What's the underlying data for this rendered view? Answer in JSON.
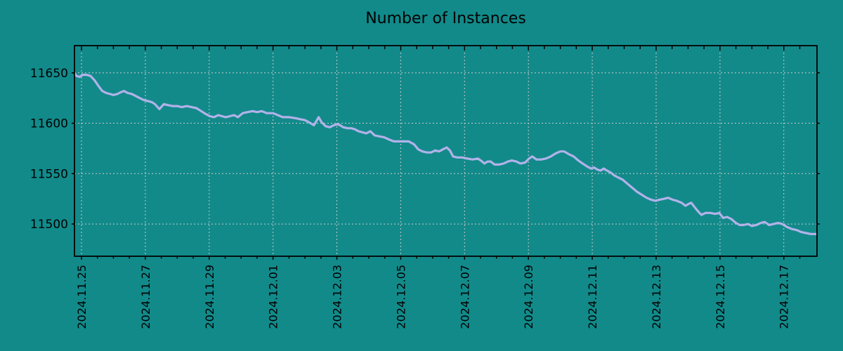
{
  "colors": {
    "background": "#128a8a",
    "line": "#b2b2e9",
    "grid": "#c9c9c9",
    "axis": "#000000",
    "text": "#000000"
  },
  "chart_data": {
    "type": "line",
    "title": "Number of Instances",
    "xlabel": "",
    "ylabel": "",
    "legend": "none",
    "grid": true,
    "x_day0_label": "2024.11.25",
    "xlim_days": [
      -0.22,
      23.04
    ],
    "ylim": [
      11468,
      11677
    ],
    "x_minor_interval_days": 0.5,
    "x_major_ticks": [
      {
        "day": 0,
        "label": "2024.11.25"
      },
      {
        "day": 2,
        "label": "2024.11.27"
      },
      {
        "day": 4,
        "label": "2024.11.29"
      },
      {
        "day": 6,
        "label": "2024.12.01"
      },
      {
        "day": 8,
        "label": "2024.12.03"
      },
      {
        "day": 10,
        "label": "2024.12.05"
      },
      {
        "day": 12,
        "label": "2024.12.07"
      },
      {
        "day": 14,
        "label": "2024.12.09"
      },
      {
        "day": 16,
        "label": "2024.12.11"
      },
      {
        "day": 18,
        "label": "2024.12.13"
      },
      {
        "day": 20,
        "label": "2024.12.15"
      },
      {
        "day": 22,
        "label": "2024.12.17"
      }
    ],
    "y_ticks": [
      {
        "value": 11500,
        "label": "11500"
      },
      {
        "value": 11550,
        "label": "11550"
      },
      {
        "value": 11600,
        "label": "11600"
      },
      {
        "value": 11650,
        "label": "11650"
      }
    ],
    "series": [
      {
        "name": "Number of Instances",
        "points": [
          [
            -0.22,
            11650
          ],
          [
            -0.16,
            11647
          ],
          [
            -0.06,
            11646
          ],
          [
            0.04,
            11648
          ],
          [
            0.16,
            11648
          ],
          [
            0.28,
            11647
          ],
          [
            0.4,
            11643
          ],
          [
            0.53,
            11637
          ],
          [
            0.65,
            11632
          ],
          [
            0.78,
            11630
          ],
          [
            0.9,
            11629
          ],
          [
            1.0,
            11628
          ],
          [
            1.12,
            11629
          ],
          [
            1.25,
            11631
          ],
          [
            1.33,
            11632
          ],
          [
            1.45,
            11630
          ],
          [
            1.58,
            11629
          ],
          [
            1.7,
            11627
          ],
          [
            1.82,
            11625
          ],
          [
            1.95,
            11623
          ],
          [
            2.08,
            11622
          ],
          [
            2.2,
            11621
          ],
          [
            2.3,
            11619
          ],
          [
            2.44,
            11614
          ],
          [
            2.58,
            11619
          ],
          [
            2.7,
            11618
          ],
          [
            2.85,
            11617
          ],
          [
            3.0,
            11617
          ],
          [
            3.15,
            11616
          ],
          [
            3.3,
            11617
          ],
          [
            3.45,
            11616
          ],
          [
            3.6,
            11615
          ],
          [
            3.75,
            11612
          ],
          [
            3.9,
            11609
          ],
          [
            4.02,
            11607
          ],
          [
            4.15,
            11606
          ],
          [
            4.28,
            11608
          ],
          [
            4.4,
            11607
          ],
          [
            4.52,
            11606
          ],
          [
            4.65,
            11607
          ],
          [
            4.78,
            11608
          ],
          [
            4.9,
            11606
          ],
          [
            5.05,
            11610
          ],
          [
            5.2,
            11611
          ],
          [
            5.36,
            11612
          ],
          [
            5.5,
            11611
          ],
          [
            5.65,
            11612
          ],
          [
            5.8,
            11610
          ],
          [
            6.0,
            11610
          ],
          [
            6.15,
            11608
          ],
          [
            6.3,
            11606
          ],
          [
            6.5,
            11606
          ],
          [
            6.7,
            11605
          ],
          [
            6.85,
            11604
          ],
          [
            7.0,
            11603
          ],
          [
            7.12,
            11601
          ],
          [
            7.28,
            11598
          ],
          [
            7.43,
            11606
          ],
          [
            7.52,
            11601
          ],
          [
            7.65,
            11597
          ],
          [
            7.78,
            11596
          ],
          [
            7.9,
            11598
          ],
          [
            8.02,
            11599
          ],
          [
            8.1,
            11598
          ],
          [
            8.2,
            11596
          ],
          [
            8.34,
            11595
          ],
          [
            8.45,
            11595
          ],
          [
            8.56,
            11594
          ],
          [
            8.68,
            11592
          ],
          [
            8.8,
            11591
          ],
          [
            8.92,
            11590
          ],
          [
            9.05,
            11592
          ],
          [
            9.18,
            11588
          ],
          [
            9.32,
            11587
          ],
          [
            9.48,
            11586
          ],
          [
            9.62,
            11584
          ],
          [
            9.78,
            11582
          ],
          [
            9.95,
            11582
          ],
          [
            10.1,
            11582
          ],
          [
            10.25,
            11582
          ],
          [
            10.42,
            11579
          ],
          [
            10.55,
            11574
          ],
          [
            10.68,
            11572
          ],
          [
            10.82,
            11571
          ],
          [
            10.95,
            11571
          ],
          [
            11.08,
            11573
          ],
          [
            11.2,
            11572
          ],
          [
            11.32,
            11574
          ],
          [
            11.44,
            11576
          ],
          [
            11.54,
            11573
          ],
          [
            11.64,
            11567
          ],
          [
            11.78,
            11566
          ],
          [
            11.92,
            11566
          ],
          [
            12.08,
            11565
          ],
          [
            12.25,
            11564
          ],
          [
            12.42,
            11565
          ],
          [
            12.55,
            11562
          ],
          [
            12.62,
            11560
          ],
          [
            12.72,
            11562
          ],
          [
            12.82,
            11562
          ],
          [
            12.94,
            11559
          ],
          [
            13.08,
            11559
          ],
          [
            13.22,
            11560
          ],
          [
            13.36,
            11562
          ],
          [
            13.48,
            11563
          ],
          [
            13.62,
            11562
          ],
          [
            13.75,
            11560
          ],
          [
            13.9,
            11561
          ],
          [
            14.02,
            11565
          ],
          [
            14.12,
            11567
          ],
          [
            14.25,
            11564
          ],
          [
            14.4,
            11564
          ],
          [
            14.55,
            11565
          ],
          [
            14.7,
            11567
          ],
          [
            14.85,
            11570
          ],
          [
            15.0,
            11572
          ],
          [
            15.12,
            11572
          ],
          [
            15.28,
            11569
          ],
          [
            15.42,
            11567
          ],
          [
            15.56,
            11563
          ],
          [
            15.7,
            11560
          ],
          [
            15.84,
            11557
          ],
          [
            15.96,
            11555
          ],
          [
            16.06,
            11556
          ],
          [
            16.16,
            11554
          ],
          [
            16.26,
            11553
          ],
          [
            16.36,
            11555
          ],
          [
            16.46,
            11553
          ],
          [
            16.58,
            11551
          ],
          [
            16.7,
            11548
          ],
          [
            16.82,
            11546
          ],
          [
            16.95,
            11544
          ],
          [
            17.1,
            11540
          ],
          [
            17.25,
            11536
          ],
          [
            17.4,
            11532
          ],
          [
            17.55,
            11529
          ],
          [
            17.7,
            11526
          ],
          [
            17.85,
            11524
          ],
          [
            17.98,
            11523
          ],
          [
            18.1,
            11524
          ],
          [
            18.25,
            11525
          ],
          [
            18.38,
            11526
          ],
          [
            18.52,
            11524
          ],
          [
            18.65,
            11523
          ],
          [
            18.8,
            11521
          ],
          [
            18.92,
            11518
          ],
          [
            19.02,
            11520
          ],
          [
            19.1,
            11521
          ],
          [
            19.2,
            11517
          ],
          [
            19.3,
            11513
          ],
          [
            19.42,
            11509
          ],
          [
            19.55,
            11511
          ],
          [
            19.7,
            11511
          ],
          [
            19.85,
            11510
          ],
          [
            19.98,
            11511
          ],
          [
            20.1,
            11506
          ],
          [
            20.22,
            11507
          ],
          [
            20.35,
            11505
          ],
          [
            20.5,
            11501
          ],
          [
            20.62,
            11499
          ],
          [
            20.75,
            11499
          ],
          [
            20.88,
            11500
          ],
          [
            21.0,
            11498
          ],
          [
            21.14,
            11499
          ],
          [
            21.28,
            11501
          ],
          [
            21.4,
            11502
          ],
          [
            21.54,
            11499
          ],
          [
            21.68,
            11500
          ],
          [
            21.82,
            11501
          ],
          [
            21.95,
            11500
          ],
          [
            22.1,
            11497
          ],
          [
            22.25,
            11495
          ],
          [
            22.4,
            11494
          ],
          [
            22.55,
            11492
          ],
          [
            22.7,
            11491
          ],
          [
            22.85,
            11490
          ],
          [
            23.04,
            11490
          ]
        ]
      }
    ]
  }
}
